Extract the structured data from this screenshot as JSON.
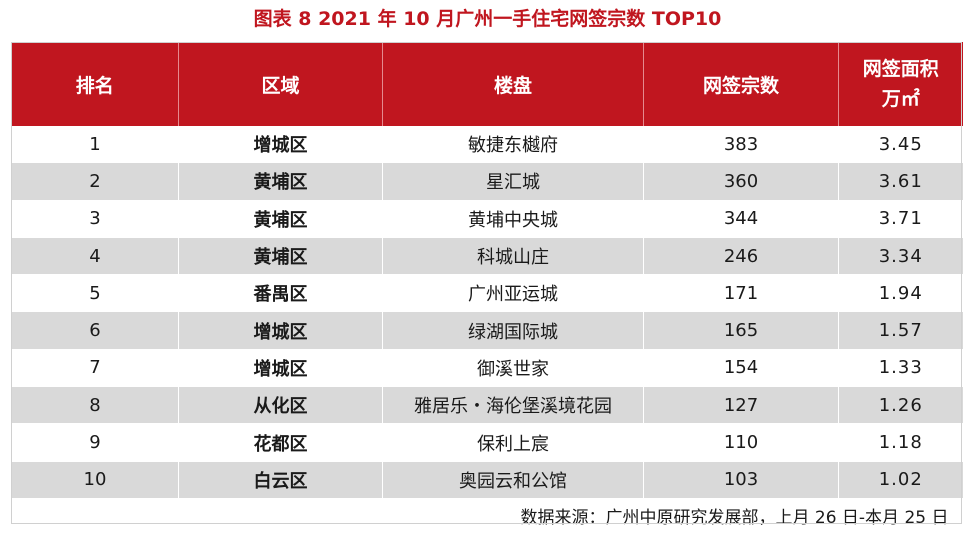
{
  "title": "图表 8   2021 年 10 月广州一手住宅网签宗数 TOP10",
  "headers": {
    "rank": "排名",
    "district": "区域",
    "project": "楼盘",
    "count": "网签宗数",
    "area_line1": "网签面积",
    "area_line2": "万㎡"
  },
  "rows": [
    {
      "rank": "1",
      "district": "增城区",
      "project": "敏捷东樾府",
      "count": "383",
      "area": "3.45"
    },
    {
      "rank": "2",
      "district": "黄埔区",
      "project": "星汇城",
      "count": "360",
      "area": "3.61"
    },
    {
      "rank": "3",
      "district": "黄埔区",
      "project": "黄埔中央城",
      "count": "344",
      "area": "3.71"
    },
    {
      "rank": "4",
      "district": "黄埔区",
      "project": "科城山庄",
      "count": "246",
      "area": "3.34"
    },
    {
      "rank": "5",
      "district": "番禺区",
      "project": "广州亚运城",
      "count": "171",
      "area": "1.94"
    },
    {
      "rank": "6",
      "district": "增城区",
      "project": "绿湖国际城",
      "count": "165",
      "area": "1.57"
    },
    {
      "rank": "7",
      "district": "增城区",
      "project": "御溪世家",
      "count": "154",
      "area": "1.33"
    },
    {
      "rank": "8",
      "district": "从化区",
      "project": "雅居乐・海伦堡溪境花园",
      "count": "127",
      "area": "1.26"
    },
    {
      "rank": "9",
      "district": "花都区",
      "project": "保利上宸",
      "count": "110",
      "area": "1.18"
    },
    {
      "rank": "10",
      "district": "白云区",
      "project": "奥园云和公馆",
      "count": "103",
      "area": "1.02"
    }
  ],
  "source": "数据来源：广州中原研究发展部，上月 26 日-本月 25 日",
  "colors": {
    "header_bg": "#c0161f",
    "stripe": "#d9d9d9",
    "title": "#c0161f"
  }
}
